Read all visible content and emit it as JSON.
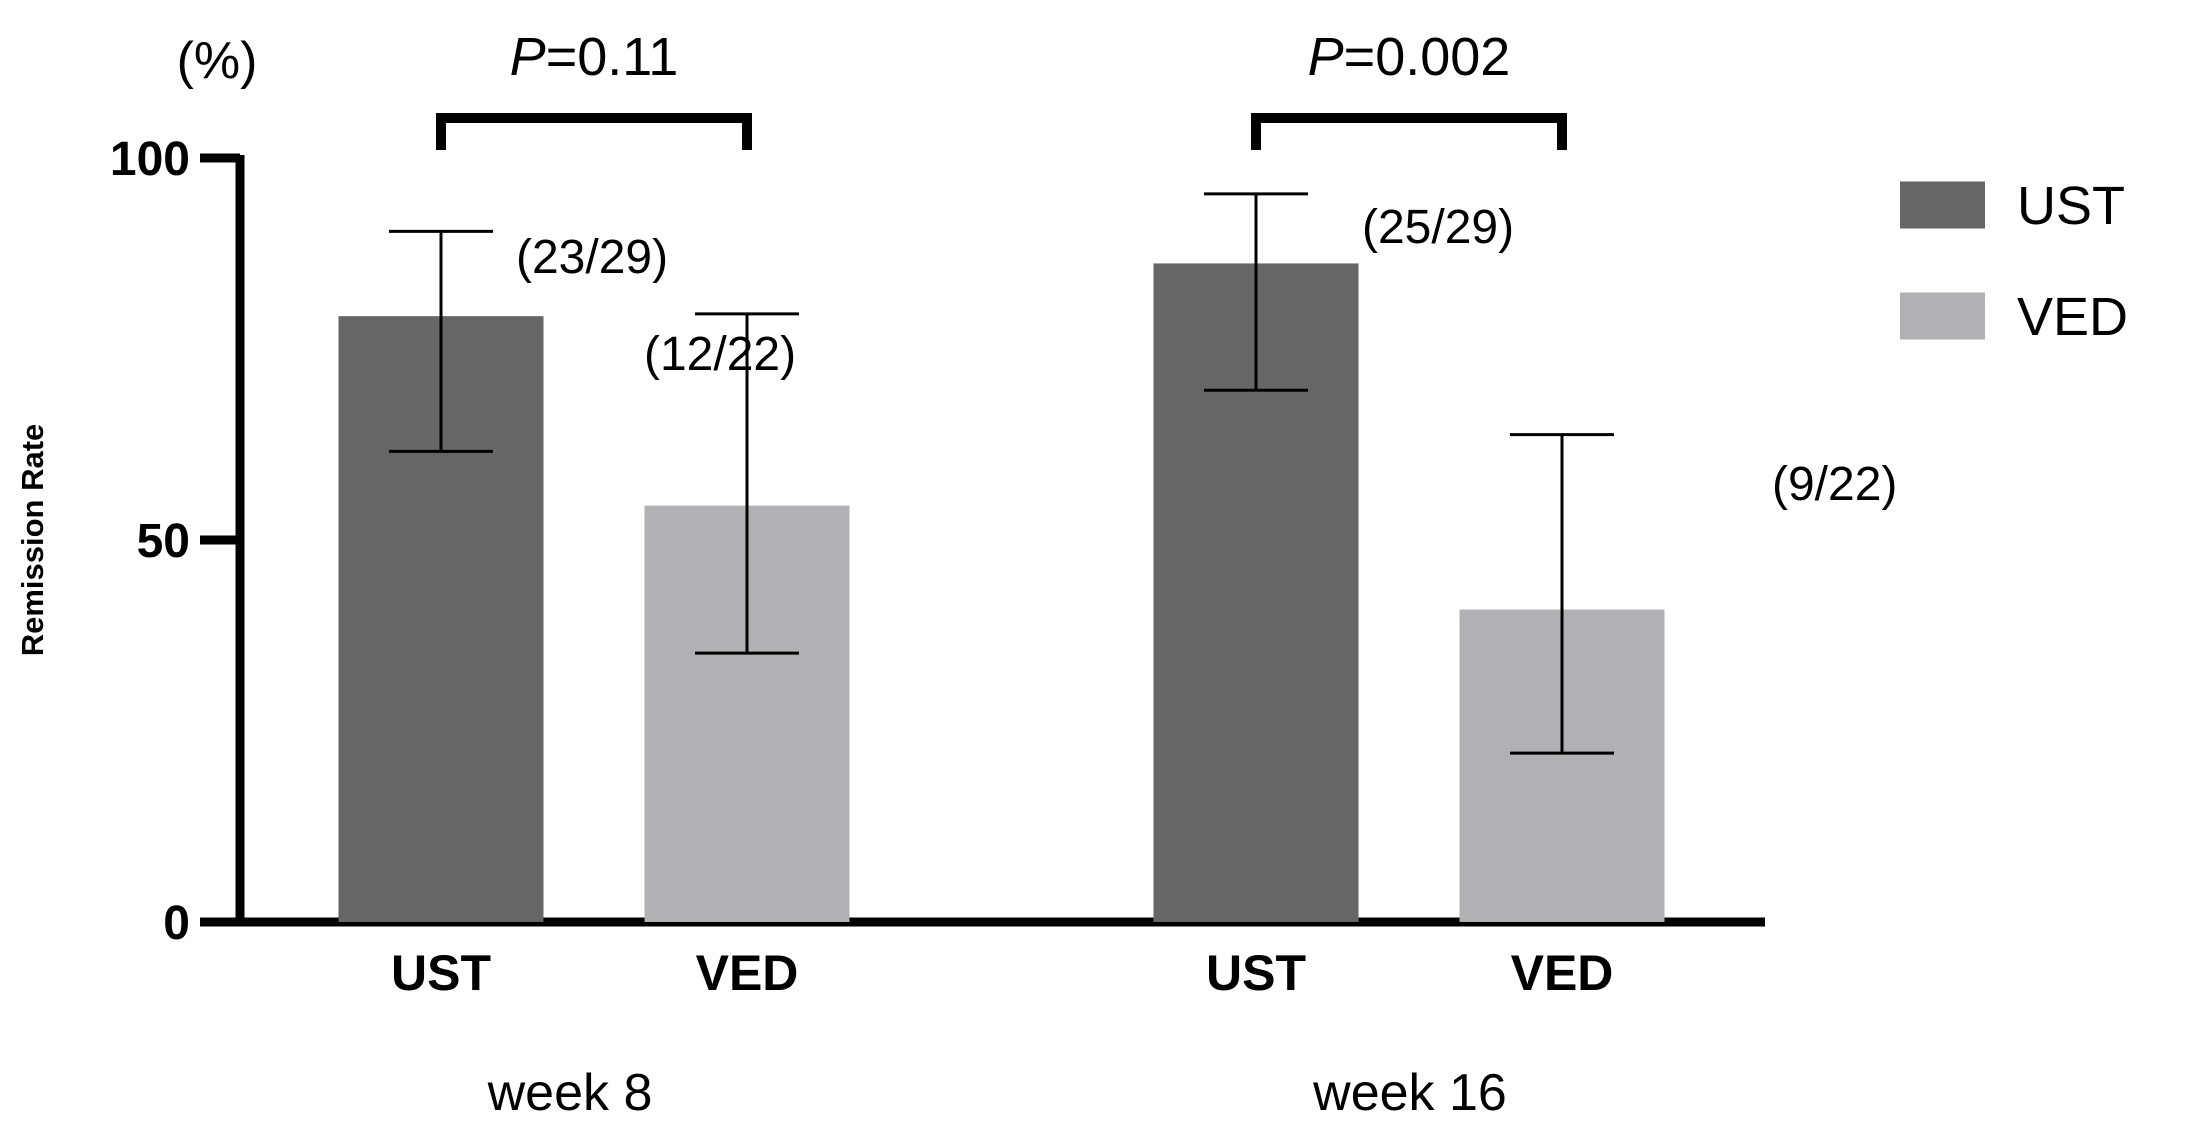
{
  "chart_data": {
    "type": "bar",
    "unit_label": "(%)",
    "ylabel": "Remission Rate",
    "ylim": [
      0,
      100
    ],
    "yticks": [
      0,
      50,
      100
    ],
    "groups": [
      {
        "label": "week 8",
        "p_prefix": "P",
        "p_value": "=0.11",
        "bars": [
          {
            "category": "UST",
            "value": 79.3,
            "err_low": 61.6,
            "err_high": 90.4,
            "annotation": "(23/29)"
          },
          {
            "category": "VED",
            "value": 54.5,
            "err_low": 35.2,
            "err_high": 79.6,
            "annotation": "(12/22)"
          }
        ]
      },
      {
        "label": "week 16",
        "p_prefix": "P",
        "p_value": "=0.002",
        "bars": [
          {
            "category": "UST",
            "value": 86.2,
            "err_low": 69.6,
            "err_high": 95.3,
            "annotation": "(25/29)"
          },
          {
            "category": "VED",
            "value": 40.9,
            "err_low": 22.1,
            "err_high": 63.8,
            "annotation": "(9/22)"
          }
        ]
      }
    ],
    "legend": {
      "placement": "right",
      "entries": [
        {
          "name": "UST",
          "color": "#666666"
        },
        {
          "name": "VED",
          "color": "#b1b0b5"
        }
      ]
    },
    "colors": {
      "UST": "#666666",
      "VED": "#b1b0b5",
      "axis": "#000000"
    }
  }
}
